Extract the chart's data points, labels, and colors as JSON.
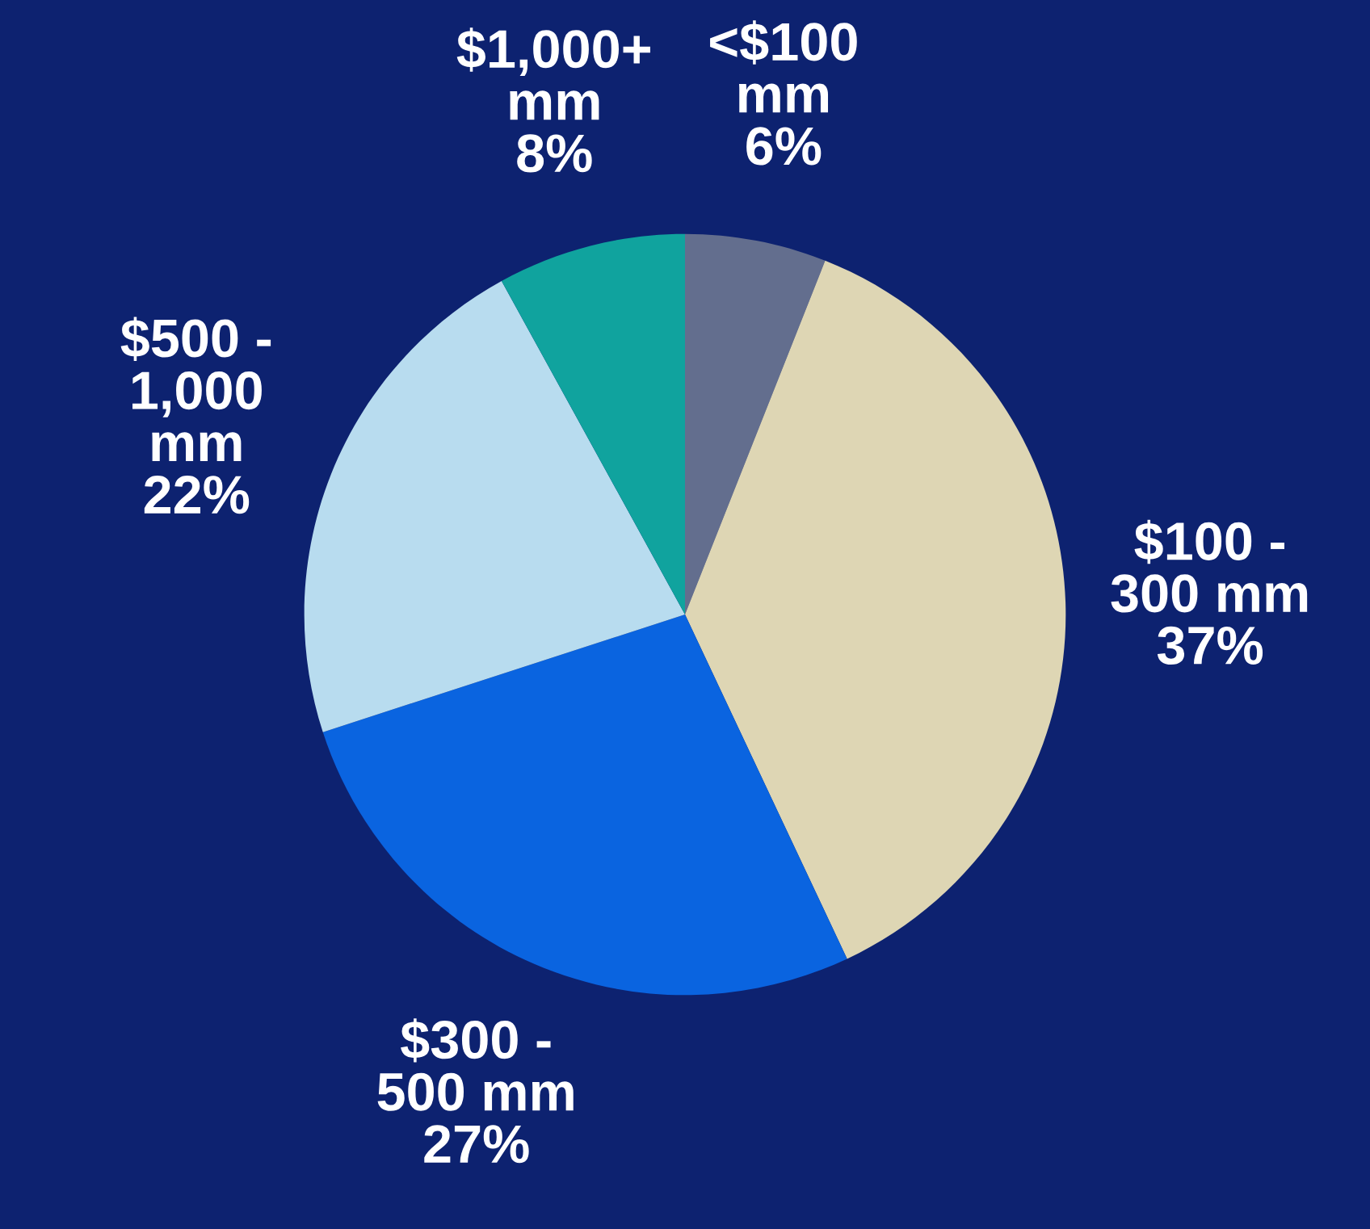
{
  "chart_data": {
    "type": "pie",
    "categories": [
      "<$100\nmm",
      "$100 -\n300 mm",
      "$300 -\n500 mm",
      "$500 -\n1,000\nmm",
      "$1,000+\nmm"
    ],
    "values": [
      6,
      37,
      27,
      22,
      8
    ],
    "value_labels": [
      "6%",
      "37%",
      "27%",
      "22%",
      "8%"
    ],
    "colors": [
      "#636e8e",
      "#ded6b4",
      "#0a64e0",
      "#b8dcef",
      "#10a39e"
    ]
  }
}
